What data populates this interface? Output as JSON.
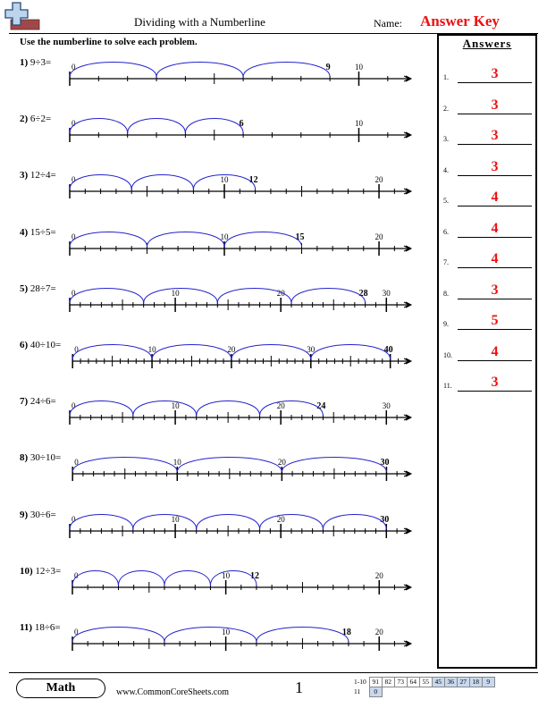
{
  "header": {
    "title": "Dividing with a Numberline",
    "name_label": "Name:",
    "answer_key": "Answer Key"
  },
  "instructions": "Use the numberline to solve each problem.",
  "answers_panel": {
    "title": "Answers",
    "items": [
      {
        "num": "1.",
        "value": "3"
      },
      {
        "num": "2.",
        "value": "3"
      },
      {
        "num": "3.",
        "value": "3"
      },
      {
        "num": "4.",
        "value": "3"
      },
      {
        "num": "5.",
        "value": "4"
      },
      {
        "num": "6.",
        "value": "4"
      },
      {
        "num": "7.",
        "value": "4"
      },
      {
        "num": "8.",
        "value": "3"
      },
      {
        "num": "9.",
        "value": "5"
      },
      {
        "num": "10.",
        "value": "4"
      },
      {
        "num": "11.",
        "value": "3"
      }
    ]
  },
  "problems": [
    {
      "num": "1)",
      "expr": "9÷3=",
      "dividend": 9,
      "divisor": 3,
      "max": 10,
      "labels": [
        0,
        10
      ]
    },
    {
      "num": "2)",
      "expr": "6÷2=",
      "dividend": 6,
      "divisor": 2,
      "max": 10,
      "labels": [
        0,
        10
      ]
    },
    {
      "num": "3)",
      "expr": "12÷4=",
      "dividend": 12,
      "divisor": 4,
      "max": 20,
      "labels": [
        0,
        10,
        20
      ]
    },
    {
      "num": "4)",
      "expr": "15÷5=",
      "dividend": 15,
      "divisor": 5,
      "max": 20,
      "labels": [
        0,
        10,
        20
      ]
    },
    {
      "num": "5)",
      "expr": "28÷7=",
      "dividend": 28,
      "divisor": 7,
      "max": 30,
      "labels": [
        0,
        10,
        20,
        30
      ]
    },
    {
      "num": "6)",
      "expr": "40÷10=",
      "dividend": 40,
      "divisor": 10,
      "max": 40,
      "labels": [
        0,
        10,
        20,
        30
      ]
    },
    {
      "num": "7)",
      "expr": "24÷6=",
      "dividend": 24,
      "divisor": 6,
      "max": 30,
      "labels": [
        0,
        10,
        20,
        30
      ]
    },
    {
      "num": "8)",
      "expr": "30÷10=",
      "dividend": 30,
      "divisor": 10,
      "max": 30,
      "labels": [
        0,
        10,
        20
      ]
    },
    {
      "num": "9)",
      "expr": "30÷6=",
      "dividend": 30,
      "divisor": 6,
      "max": 30,
      "labels": [
        0,
        10,
        20
      ]
    },
    {
      "num": "10)",
      "expr": "12÷3=",
      "dividend": 12,
      "divisor": 3,
      "max": 20,
      "labels": [
        0,
        10,
        20
      ]
    },
    {
      "num": "11)",
      "expr": "18÷6=",
      "dividend": 18,
      "divisor": 6,
      "max": 20,
      "labels": [
        0,
        10,
        20
      ]
    }
  ],
  "footer": {
    "subject": "Math",
    "website": "www.CommonCoreSheets.com",
    "page": "1",
    "score_rows": [
      {
        "label": "1-10",
        "cells": [
          "91",
          "82",
          "73",
          "64",
          "55",
          "45",
          "36",
          "27",
          "18",
          "9"
        ]
      },
      {
        "label": "11",
        "cells": [
          "0"
        ]
      }
    ]
  },
  "colors": {
    "answer": "#ee1111",
    "arc": "#2222cc",
    "score_highlight": "#c8d8ee"
  }
}
